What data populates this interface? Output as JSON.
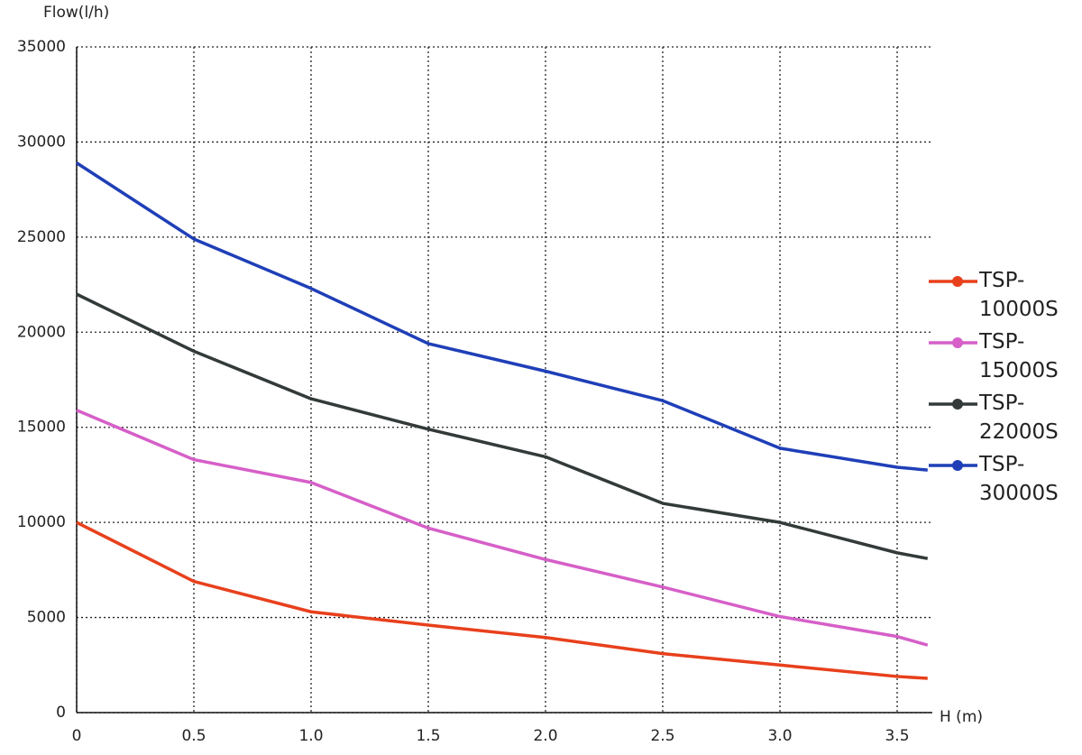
{
  "chart_data": {
    "type": "line",
    "y_label": "Flow(l/h)",
    "x_label": "H (m)",
    "x": [
      0,
      0.5,
      1,
      1.5,
      2,
      2.5,
      3,
      3.5,
      3.63
    ],
    "series": [
      {
        "name": "TSP-10000S",
        "color": "#e8401c",
        "values": [
          10000,
          6900,
          5300,
          4600,
          3950,
          3100,
          2500,
          1900,
          1800
        ]
      },
      {
        "name": "TSP-15000S",
        "color": "#d65fc8",
        "values": [
          15900,
          13300,
          12100,
          9700,
          8050,
          6600,
          5050,
          4000,
          3550
        ]
      },
      {
        "name": "TSP-22000S",
        "color": "#333a3a",
        "values": [
          22000,
          19000,
          16500,
          14900,
          13450,
          11000,
          10000,
          8400,
          8100
        ]
      },
      {
        "name": "TSP-30000S",
        "color": "#1f3fb8",
        "values": [
          28900,
          24900,
          22300,
          19400,
          17950,
          16400,
          13900,
          12900,
          12750
        ]
      }
    ],
    "xlim": [
      0,
      3.65
    ],
    "ylim": [
      0,
      35000
    ],
    "xticks": [
      0,
      0.5,
      {
        "value": 1,
        "label": "1.0"
      },
      1.5,
      {
        "value": 2,
        "label": "2.0"
      },
      2.5,
      {
        "value": 3,
        "label": "3.0"
      },
      3.5
    ],
    "yticks": [
      0,
      5000,
      10000,
      15000,
      20000,
      25000,
      30000,
      35000
    ],
    "grid": true,
    "legend": "right"
  }
}
